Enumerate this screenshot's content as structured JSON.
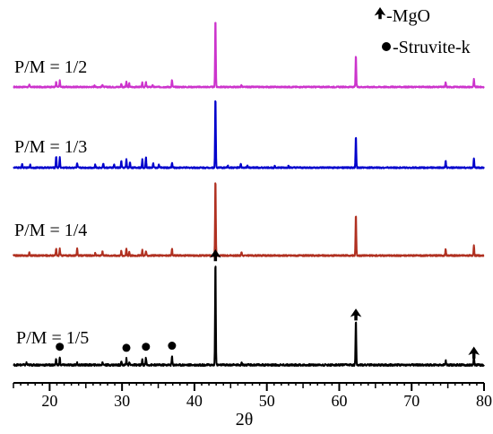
{
  "chart_data": {
    "type": "line",
    "title": "",
    "xlabel": "2θ",
    "ylabel": "",
    "xlim": [
      15,
      80
    ],
    "xticks": [
      20,
      30,
      40,
      50,
      60,
      70,
      80
    ],
    "grid": false,
    "legend": {
      "placement": "top-right",
      "entries": [
        {
          "marker": "spade",
          "label": "-MgO"
        },
        {
          "marker": "circle",
          "label": "-Struvite-k"
        }
      ]
    },
    "series": [
      {
        "name": "P/M = 1/2",
        "color": "#cc33cc",
        "peaks": [
          [
            17.2,
            0.03
          ],
          [
            20.9,
            0.07
          ],
          [
            21.4,
            0.09
          ],
          [
            26.2,
            0.03
          ],
          [
            27.3,
            0.04
          ],
          [
            29.9,
            0.05
          ],
          [
            30.6,
            0.08
          ],
          [
            31.0,
            0.05
          ],
          [
            32.8,
            0.06
          ],
          [
            33.3,
            0.07
          ],
          [
            34.2,
            0.03
          ],
          [
            36.9,
            0.1
          ],
          [
            42.9,
            1.0
          ],
          [
            46.5,
            0.03
          ],
          [
            62.3,
            0.46
          ],
          [
            74.7,
            0.07
          ],
          [
            78.6,
            0.11
          ]
        ]
      },
      {
        "name": "P/M = 1/3",
        "color": "#0000cc",
        "peaks": [
          [
            16.2,
            0.05
          ],
          [
            17.3,
            0.04
          ],
          [
            20.9,
            0.16
          ],
          [
            21.4,
            0.14
          ],
          [
            23.8,
            0.06
          ],
          [
            26.3,
            0.04
          ],
          [
            27.4,
            0.06
          ],
          [
            28.9,
            0.04
          ],
          [
            29.9,
            0.09
          ],
          [
            30.6,
            0.11
          ],
          [
            31.1,
            0.07
          ],
          [
            32.8,
            0.11
          ],
          [
            33.3,
            0.15
          ],
          [
            34.3,
            0.06
          ],
          [
            35.1,
            0.04
          ],
          [
            36.9,
            0.07
          ],
          [
            42.9,
            0.98
          ],
          [
            44.6,
            0.03
          ],
          [
            46.4,
            0.05
          ],
          [
            47.3,
            0.03
          ],
          [
            51.1,
            0.03
          ],
          [
            53.0,
            0.03
          ],
          [
            62.3,
            0.43
          ],
          [
            74.7,
            0.09
          ],
          [
            78.6,
            0.13
          ]
        ]
      },
      {
        "name": "P/M = 1/4",
        "color": "#b03020",
        "peaks": [
          [
            17.2,
            0.04
          ],
          [
            20.9,
            0.09
          ],
          [
            21.4,
            0.09
          ],
          [
            23.8,
            0.1
          ],
          [
            26.3,
            0.03
          ],
          [
            27.3,
            0.05
          ],
          [
            29.9,
            0.06
          ],
          [
            30.6,
            0.09
          ],
          [
            31.0,
            0.05
          ],
          [
            32.8,
            0.07
          ],
          [
            33.3,
            0.06
          ],
          [
            36.9,
            0.09
          ],
          [
            42.9,
            1.0
          ],
          [
            46.5,
            0.05
          ],
          [
            62.3,
            0.54
          ],
          [
            74.7,
            0.08
          ],
          [
            78.6,
            0.13
          ]
        ]
      },
      {
        "name": "P/M = 1/5",
        "color": "#000000",
        "peaks": [
          [
            16.8,
            0.02
          ],
          [
            20.9,
            0.06
          ],
          [
            21.4,
            0.07
          ],
          [
            23.8,
            0.02
          ],
          [
            27.3,
            0.03
          ],
          [
            29.9,
            0.04
          ],
          [
            30.6,
            0.06
          ],
          [
            31.0,
            0.03
          ],
          [
            32.8,
            0.05
          ],
          [
            33.3,
            0.07
          ],
          [
            36.9,
            0.08
          ],
          [
            42.9,
            1.0
          ],
          [
            46.5,
            0.03
          ],
          [
            62.3,
            0.44
          ],
          [
            74.7,
            0.04
          ],
          [
            78.6,
            0.08
          ]
        ]
      }
    ],
    "annotations": [
      {
        "type": "spade",
        "x": 42.9,
        "series": "P/M = 1/5"
      },
      {
        "type": "spade",
        "x": 62.3,
        "series": "P/M = 1/5"
      },
      {
        "type": "spade",
        "x": 78.6,
        "series": "P/M = 1/5"
      },
      {
        "type": "circle",
        "x": 21.4,
        "series": "P/M = 1/5"
      },
      {
        "type": "circle",
        "x": 30.6,
        "series": "P/M = 1/5"
      },
      {
        "type": "circle",
        "x": 33.3,
        "series": "P/M = 1/5"
      },
      {
        "type": "circle",
        "x": 36.9,
        "series": "P/M = 1/5"
      }
    ]
  }
}
